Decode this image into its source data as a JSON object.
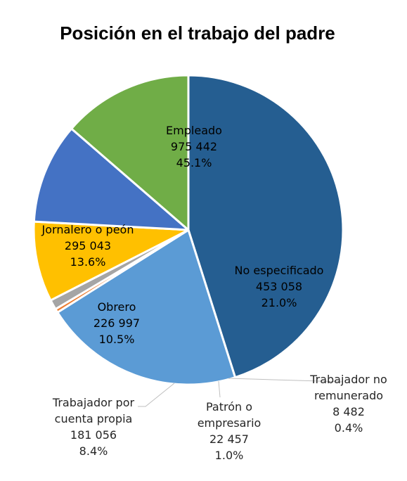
{
  "chart_data": {
    "type": "pie",
    "title": "Posición en el trabajo del padre",
    "start_angle_deg": 90,
    "direction": "clockwise",
    "slices": [
      {
        "key": "empleado",
        "label": "Empleado",
        "value_text": "975 442",
        "percent_text": "45.1%",
        "value": 975442,
        "percent": 45.1,
        "color": "#255E91"
      },
      {
        "key": "no-especificado",
        "label": "No especificado",
        "value_text": "453 058",
        "percent_text": "21.0%",
        "value": 453058,
        "percent": 21.0,
        "color": "#5B9BD5"
      },
      {
        "key": "trabajador-no-remunerado",
        "label": "Trabajador no remunerado",
        "label_lines": [
          "Trabajador no",
          "remunerado"
        ],
        "value_text": "8 482",
        "percent_text": "0.4%",
        "value": 8482,
        "percent": 0.4,
        "color": "#ED7D31"
      },
      {
        "key": "patron-o-empresario",
        "label": "Patrón o empresario",
        "label_lines": [
          "Patrón o",
          "empresario"
        ],
        "value_text": "22 457",
        "percent_text": "1.0%",
        "value": 22457,
        "percent": 1.0,
        "color": "#A5A5A5"
      },
      {
        "key": "trabajador-por-cuenta-propia",
        "label": "Trabajador por cuenta propia",
        "label_lines": [
          "Trabajador por",
          "cuenta propia"
        ],
        "value_text": "181 056",
        "percent_text": "8.4%",
        "value": 181056,
        "percent": 8.4,
        "color": "#FFC000"
      },
      {
        "key": "obrero",
        "label": "Obrero",
        "value_text": "226 997",
        "percent_text": "10.5%",
        "value": 226997,
        "percent": 10.5,
        "color": "#4472C4"
      },
      {
        "key": "jornalero-o-peon",
        "label": "Jornalero o peón",
        "value_text": "295 043",
        "percent_text": "13.6%",
        "value": 295043,
        "percent": 13.6,
        "color": "#70AD47"
      }
    ]
  }
}
